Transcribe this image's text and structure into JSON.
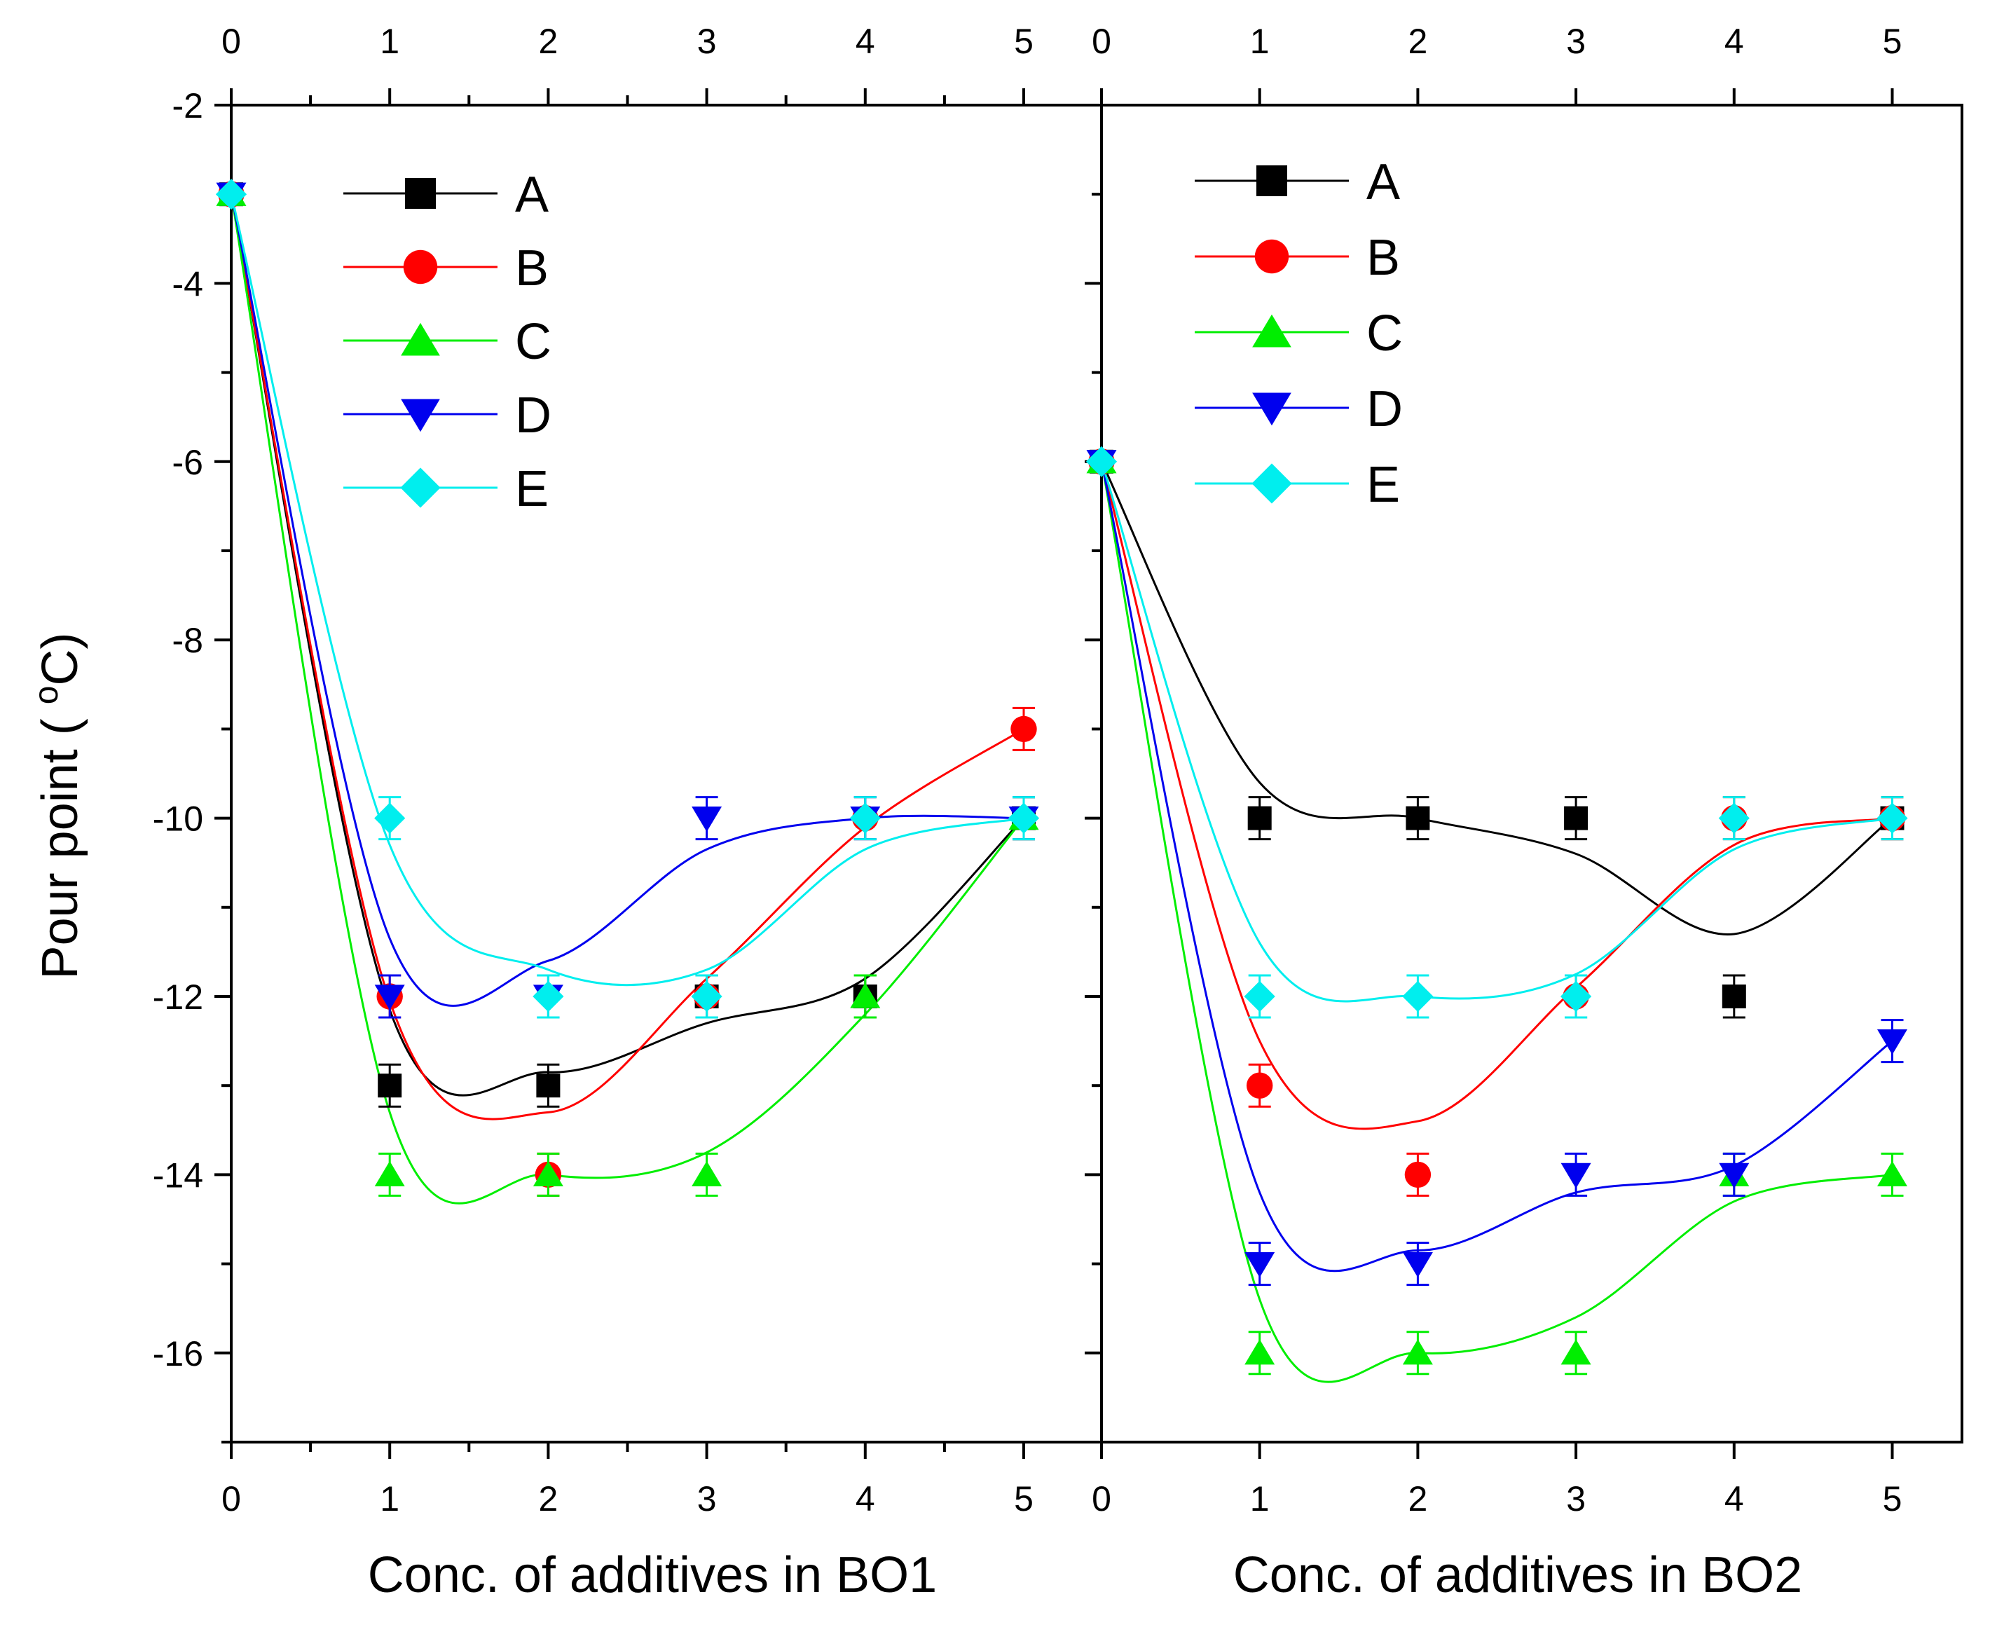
{
  "chart_data": {
    "type": "scatter",
    "ylabel": "Pour point ( °C)",
    "ylabel_parts": {
      "prefix": "Pour point ( ",
      "superscript": "o",
      "suffix": "C)"
    },
    "ylim": [
      -17,
      -2
    ],
    "y_ticks": [
      -2,
      -4,
      -6,
      -8,
      -10,
      -12,
      -14,
      -16
    ],
    "y_tick_labels": [
      "-2",
      "-4",
      "-6",
      "-8",
      "-10",
      "-12",
      "-14",
      "-16"
    ],
    "x_ticks": [
      0,
      1,
      2,
      3,
      4,
      5
    ],
    "x_tick_labels": [
      "0",
      "1",
      "2",
      "3",
      "4",
      "5"
    ],
    "colors": {
      "A": "#000000",
      "B": "#ff0000",
      "C": "#00ee00",
      "D": "#0000ee",
      "E": "#00eeee"
    },
    "markers": {
      "A": "square",
      "B": "circle",
      "C": "triangle-up",
      "D": "triangle-down",
      "E": "diamond"
    },
    "legend": [
      "A",
      "B",
      "C",
      "D",
      "E"
    ],
    "panels": [
      {
        "xlabel": "Conc. of additives in BO1",
        "xlim": [
          0,
          5.5
        ],
        "x": [
          0,
          1,
          2,
          3,
          4,
          5
        ],
        "series": [
          {
            "name": "A",
            "values": [
              -3,
              -13,
              -13,
              -12,
              -12,
              -10
            ],
            "fit": [
              -3,
              -12.15,
              -12.85,
              -12.3,
              -11.8,
              -10
            ]
          },
          {
            "name": "B",
            "values": [
              -3,
              -12,
              -14,
              -12,
              -10,
              -9
            ],
            "fit": [
              -3,
              -12.05,
              -13.3,
              -11.8,
              -10.1,
              -9
            ]
          },
          {
            "name": "C",
            "values": [
              -3,
              -14,
              -14,
              -14,
              -12,
              -10
            ],
            "fit": [
              -3,
              -13.3,
              -14,
              -13.75,
              -12.2,
              -10
            ]
          },
          {
            "name": "D",
            "values": [
              -3,
              -12,
              -12,
              -10,
              -10,
              -10
            ],
            "fit": [
              -3,
              -11.35,
              -11.6,
              -10.35,
              -10,
              -10
            ]
          },
          {
            "name": "E",
            "values": [
              -3,
              -10,
              -12,
              -12,
              -10,
              -10
            ],
            "fit": [
              -3,
              -10.3,
              -11.7,
              -11.7,
              -10.35,
              -10
            ]
          }
        ]
      },
      {
        "xlabel": "Conc. of additives in BO2",
        "xlim": [
          0,
          5.4
        ],
        "x": [
          0,
          1,
          2,
          3,
          4,
          5
        ],
        "series": [
          {
            "name": "A",
            "values": [
              -6,
              -10,
              -10,
              -10,
              -12,
              -10
            ],
            "fit": [
              -6,
              -9.6,
              -10,
              -10.4,
              -11.3,
              -10
            ]
          },
          {
            "name": "B",
            "values": [
              -6,
              -13,
              -14,
              -12,
              -10,
              -10
            ],
            "fit": [
              -6,
              -12.5,
              -13.4,
              -11.9,
              -10.3,
              -10
            ]
          },
          {
            "name": "C",
            "values": [
              -6,
              -16,
              -16,
              -16,
              -14,
              -14
            ],
            "fit": [
              -6,
              -15.4,
              -16,
              -15.6,
              -14.3,
              -14
            ]
          },
          {
            "name": "D",
            "values": [
              -6,
              -15,
              -15,
              -14,
              -14,
              -12.5
            ],
            "fit": [
              -6,
              -14.2,
              -14.85,
              -14.2,
              -13.9,
              -12.5
            ]
          },
          {
            "name": "E",
            "values": [
              -6,
              -12,
              -12,
              -12,
              -10,
              -10
            ],
            "fit": [
              -6,
              -11.4,
              -12,
              -11.75,
              -10.35,
              -10
            ]
          }
        ]
      }
    ]
  }
}
